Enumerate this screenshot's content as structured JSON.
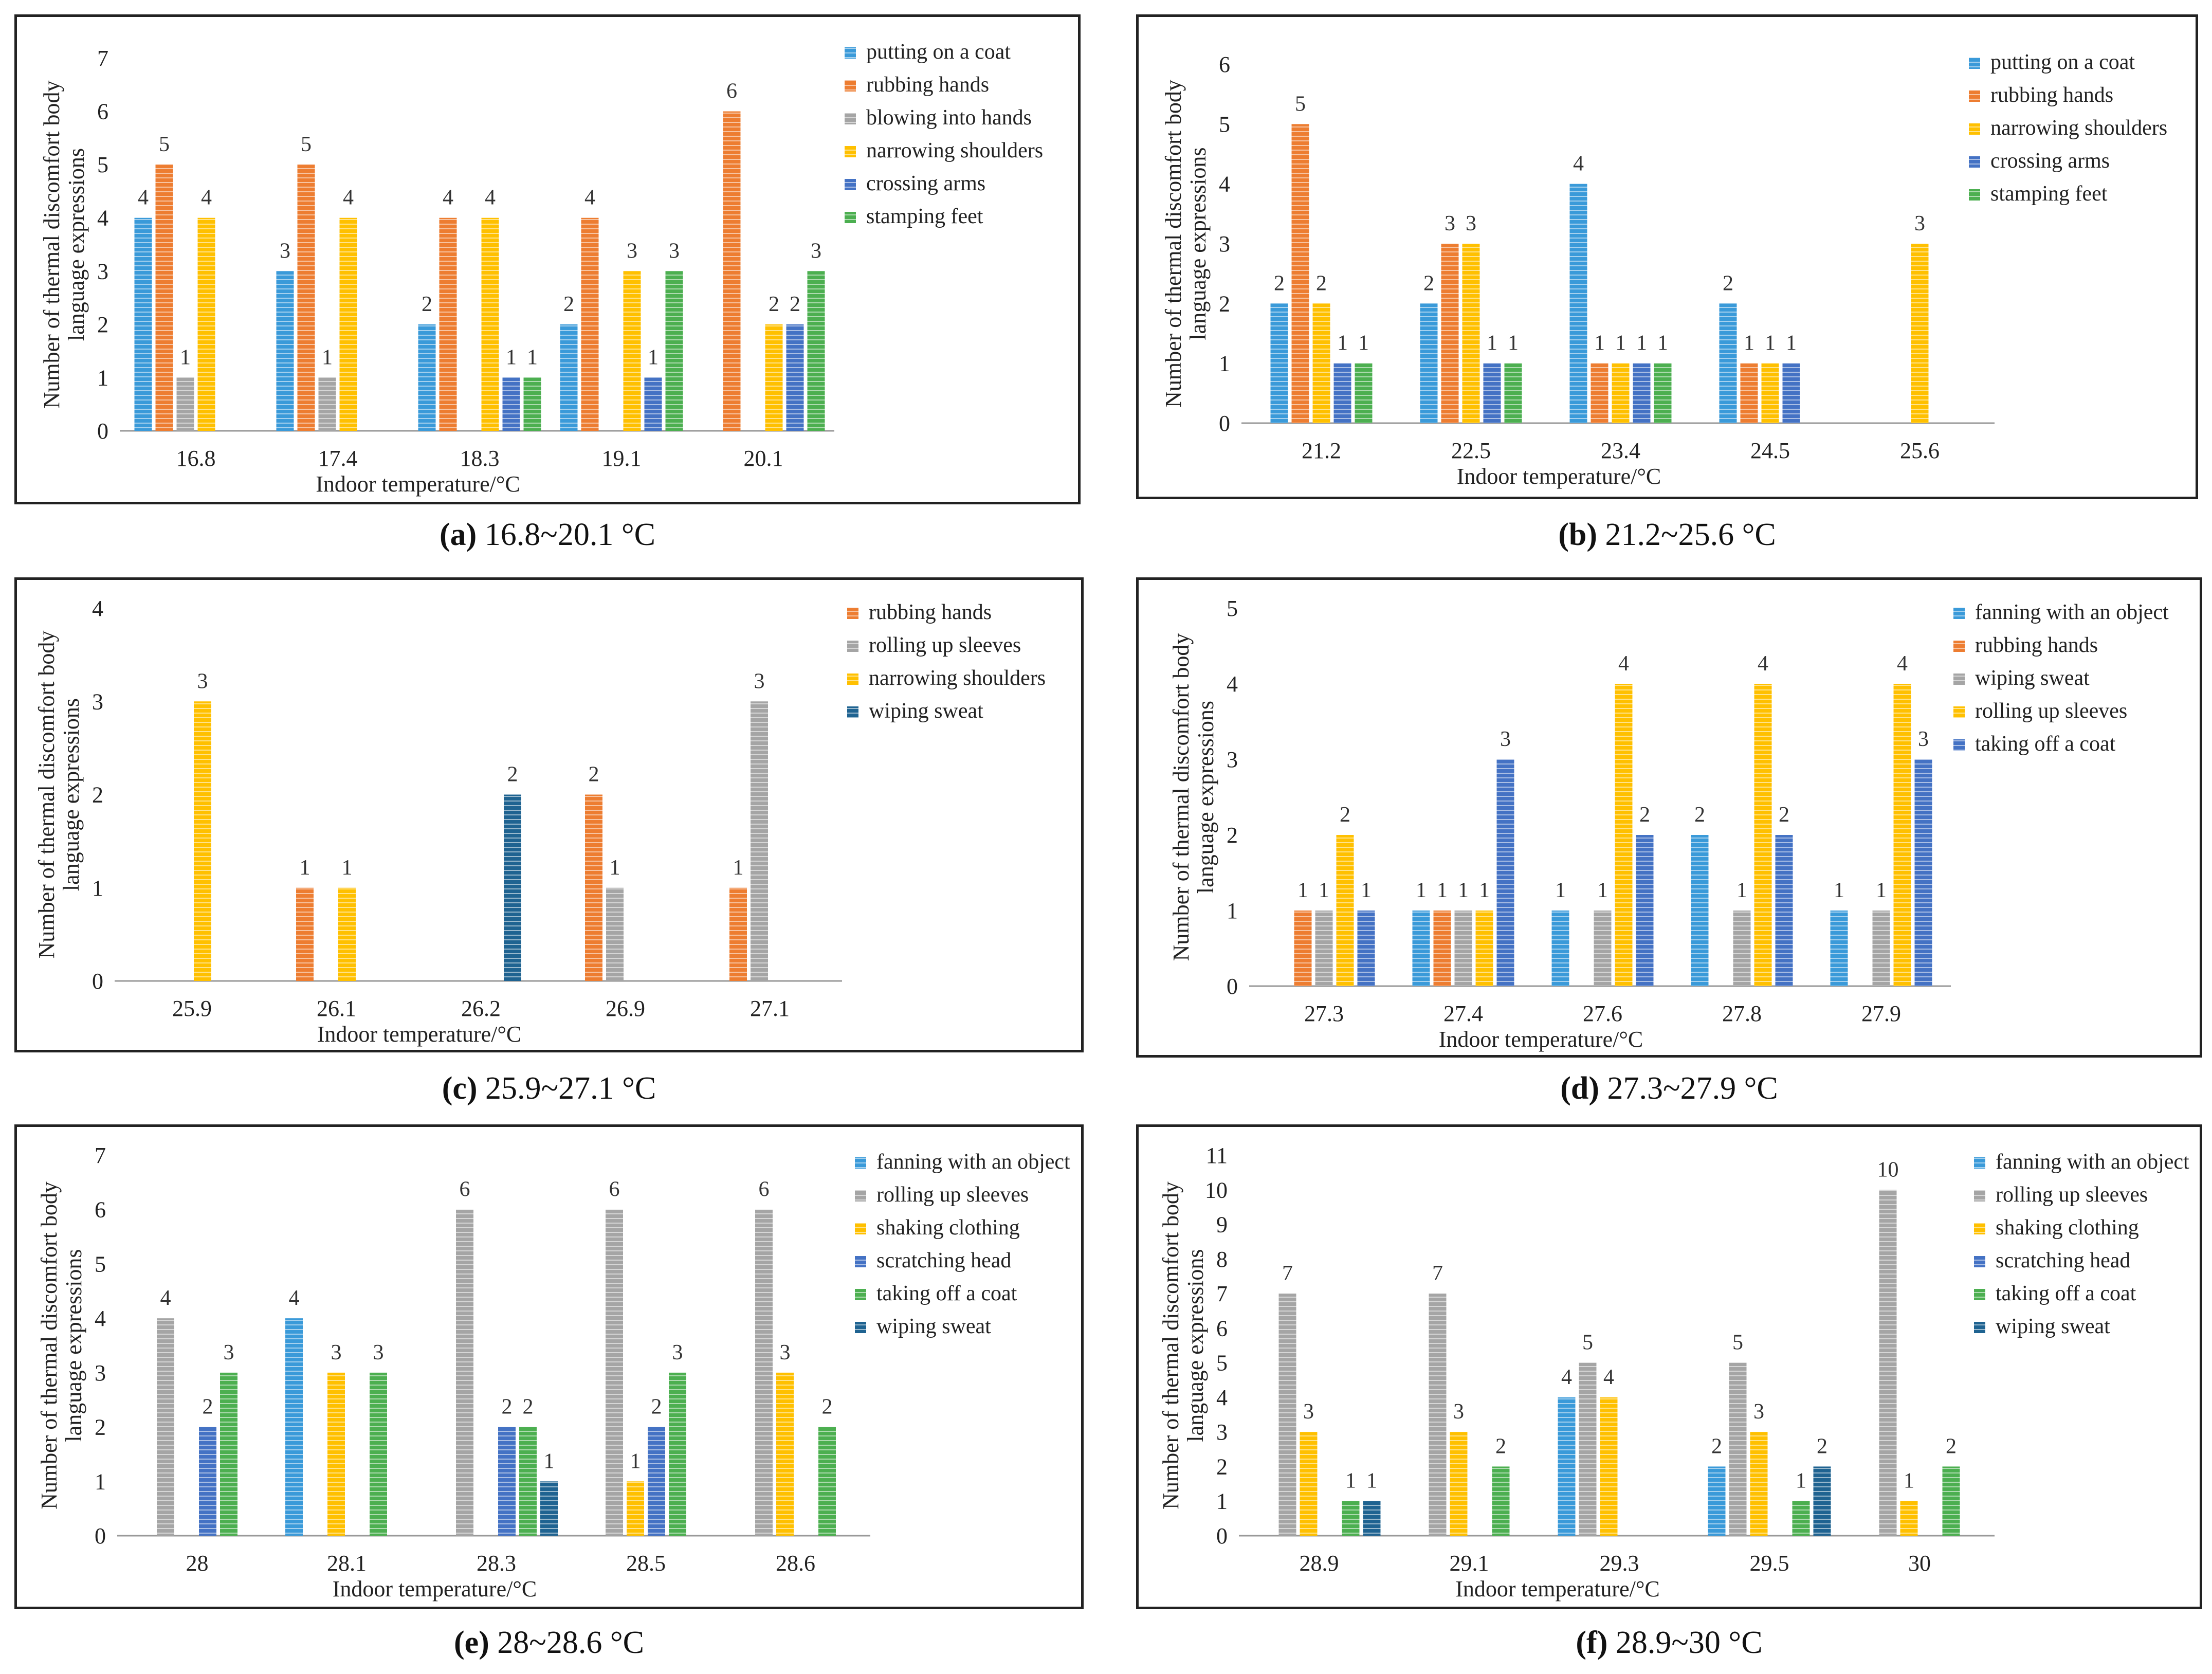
{
  "colors": {
    "fanning with an object": "#3a9ad9",
    "putting on a coat": "#3a9ad9",
    "rubbing hands": "#ed7d31",
    "blowing into hands": "#a5a5a5",
    "rolling up sleeves (a-c)": "#a5a5a5",
    "narrowing shoulders": "#ffc000",
    "crossing arms": "#4472c4",
    "stamping feet": "#4caf50",
    "wiping sweat": "#1f6391"
  },
  "chart_data": [
    {
      "type": "bar",
      "caption_letter": "(a)",
      "caption_text": " 16.8~20.1 °C",
      "xlabel": "Indoor temperature/°C",
      "ylabel_line1": "Number of thermal discomfort body",
      "ylabel_line2": "language expressions",
      "ylim": [
        0,
        7
      ],
      "yticks": [
        "0",
        "1",
        "2",
        "3",
        "4",
        "5",
        "6",
        "7"
      ],
      "categories": [
        "16.8",
        "17.4",
        "18.3",
        "19.1",
        "20.1"
      ],
      "series": [
        {
          "name": "putting on a coat",
          "color": "#3a9ad9",
          "values": [
            4,
            3,
            2,
            2,
            0
          ]
        },
        {
          "name": "rubbing hands",
          "color": "#ed7d31",
          "values": [
            5,
            5,
            4,
            4,
            6
          ]
        },
        {
          "name": "blowing into hands",
          "color": "#a5a5a5",
          "values": [
            1,
            1,
            0,
            0,
            0
          ]
        },
        {
          "name": "narrowing shoulders",
          "color": "#ffc000",
          "values": [
            4,
            4,
            4,
            3,
            2
          ]
        },
        {
          "name": "crossing arms",
          "color": "#4472c4",
          "values": [
            0,
            0,
            1,
            1,
            2
          ]
        },
        {
          "name": "stamping feet",
          "color": "#4caf50",
          "values": [
            0,
            0,
            1,
            3,
            3
          ]
        }
      ]
    },
    {
      "type": "bar",
      "caption_letter": "(b)",
      "caption_text": " 21.2~25.6 °C",
      "xlabel": "Indoor temperature/°C",
      "ylabel_line1": "Number of thermal discomfort body",
      "ylabel_line2": "language expressions",
      "ylim": [
        0,
        6
      ],
      "yticks": [
        "0",
        "1",
        "2",
        "3",
        "4",
        "5",
        "6"
      ],
      "categories": [
        "21.2",
        "22.5",
        "23.4",
        "24.5",
        "25.6"
      ],
      "series": [
        {
          "name": "putting on a coat",
          "color": "#3a9ad9",
          "values": [
            2,
            2,
            4,
            2,
            0
          ]
        },
        {
          "name": "rubbing hands",
          "color": "#ed7d31",
          "values": [
            5,
            3,
            1,
            1,
            0
          ]
        },
        {
          "name": "narrowing shoulders",
          "color": "#ffc000",
          "values": [
            2,
            3,
            1,
            1,
            3
          ]
        },
        {
          "name": "crossing arms",
          "color": "#4472c4",
          "values": [
            1,
            1,
            1,
            1,
            0
          ]
        },
        {
          "name": "stamping feet",
          "color": "#4caf50",
          "values": [
            1,
            1,
            1,
            0,
            0
          ]
        }
      ]
    },
    {
      "type": "bar",
      "caption_letter": "(c)",
      "caption_text": " 25.9~27.1 °C",
      "xlabel": "Indoor temperature/°C",
      "ylabel_line1": "Number of thermal discomfort body",
      "ylabel_line2": "language expressions",
      "ylim": [
        0,
        4
      ],
      "yticks": [
        "0",
        "1",
        "2",
        "3",
        "4"
      ],
      "categories": [
        "25.9",
        "26.1",
        "26.2",
        "26.9",
        "27.1"
      ],
      "series": [
        {
          "name": "rubbing hands",
          "color": "#ed7d31",
          "values": [
            0,
            1,
            0,
            2,
            1
          ]
        },
        {
          "name": "rolling up sleeves",
          "color": "#a5a5a5",
          "values": [
            0,
            0,
            0,
            1,
            3
          ]
        },
        {
          "name": "narrowing shoulders",
          "color": "#ffc000",
          "values": [
            3,
            1,
            0,
            0,
            0
          ]
        },
        {
          "name": "wiping sweat",
          "color": "#1f6391",
          "values": [
            0,
            0,
            2,
            0,
            0
          ]
        }
      ]
    },
    {
      "type": "bar",
      "caption_letter": "(d)",
      "caption_text": " 27.3~27.9 °C",
      "xlabel": "Indoor temperature/°C",
      "ylabel_line1": "Number of thermal discomfort body",
      "ylabel_line2": "language expressions",
      "ylim": [
        0,
        5
      ],
      "yticks": [
        "0",
        "1",
        "2",
        "3",
        "4",
        "5"
      ],
      "categories": [
        "27.3",
        "27.4",
        "27.6",
        "27.8",
        "27.9"
      ],
      "series": [
        {
          "name": "fanning with an object",
          "color": "#3a9ad9",
          "values": [
            0,
            1,
            1,
            2,
            1
          ]
        },
        {
          "name": "rubbing hands",
          "color": "#ed7d31",
          "values": [
            1,
            1,
            0,
            0,
            0
          ]
        },
        {
          "name": "wiping sweat",
          "color": "#a5a5a5",
          "values": [
            1,
            1,
            1,
            1,
            1
          ]
        },
        {
          "name": "rolling up sleeves",
          "color": "#ffc000",
          "values": [
            2,
            1,
            4,
            4,
            4
          ]
        },
        {
          "name": "taking off a coat",
          "color": "#4472c4",
          "values": [
            1,
            3,
            2,
            2,
            3
          ]
        }
      ]
    },
    {
      "type": "bar",
      "caption_letter": "(e)",
      "caption_text": " 28~28.6 °C",
      "xlabel": "Indoor temperature/°C",
      "ylabel_line1": "Number of thermal discomfort body",
      "ylabel_line2": "language expressions",
      "ylim": [
        0,
        7
      ],
      "yticks": [
        "0",
        "1",
        "2",
        "3",
        "4",
        "5",
        "6",
        "7"
      ],
      "categories": [
        "28",
        "28.1",
        "28.3",
        "28.5",
        "28.6"
      ],
      "series": [
        {
          "name": "fanning with an object",
          "color": "#3a9ad9",
          "values": [
            0,
            4,
            0,
            0,
            0
          ]
        },
        {
          "name": "rolling up sleeves",
          "color": "#a5a5a5",
          "values": [
            4,
            0,
            6,
            6,
            6
          ]
        },
        {
          "name": "shaking clothing",
          "color": "#ffc000",
          "values": [
            0,
            3,
            0,
            1,
            3
          ]
        },
        {
          "name": "scratching head",
          "color": "#4472c4",
          "values": [
            2,
            0,
            2,
            2,
            0
          ]
        },
        {
          "name": "taking off a coat",
          "color": "#4caf50",
          "values": [
            3,
            3,
            2,
            3,
            2
          ]
        },
        {
          "name": "wiping sweat",
          "color": "#1f6391",
          "values": [
            0,
            0,
            1,
            0,
            0
          ]
        }
      ]
    },
    {
      "type": "bar",
      "caption_letter": "(f)",
      "caption_text": " 28.9~30 °C",
      "xlabel": "Indoor temperature/°C",
      "ylabel_line1": "Number of thermal discomfort body",
      "ylabel_line2": "language expressions",
      "ylim": [
        0,
        11
      ],
      "yticks": [
        "0",
        "1",
        "2",
        "3",
        "4",
        "5",
        "6",
        "7",
        "8",
        "9",
        "10",
        "11"
      ],
      "categories": [
        "28.9",
        "29.1",
        "29.3",
        "29.5",
        "30"
      ],
      "series": [
        {
          "name": "fanning with an object",
          "color": "#3a9ad9",
          "values": [
            0,
            0,
            4,
            2,
            0
          ]
        },
        {
          "name": "rolling up sleeves",
          "color": "#a5a5a5",
          "values": [
            7,
            7,
            5,
            5,
            10
          ]
        },
        {
          "name": "shaking clothing",
          "color": "#ffc000",
          "values": [
            3,
            3,
            4,
            3,
            1
          ]
        },
        {
          "name": "scratching head",
          "color": "#4472c4",
          "values": [
            0,
            0,
            0,
            0,
            0
          ]
        },
        {
          "name": "taking off a coat",
          "color": "#4caf50",
          "values": [
            1,
            2,
            0,
            1,
            2
          ]
        },
        {
          "name": "wiping sweat",
          "color": "#1f6391",
          "values": [
            1,
            0,
            0,
            2,
            0
          ]
        }
      ]
    }
  ]
}
